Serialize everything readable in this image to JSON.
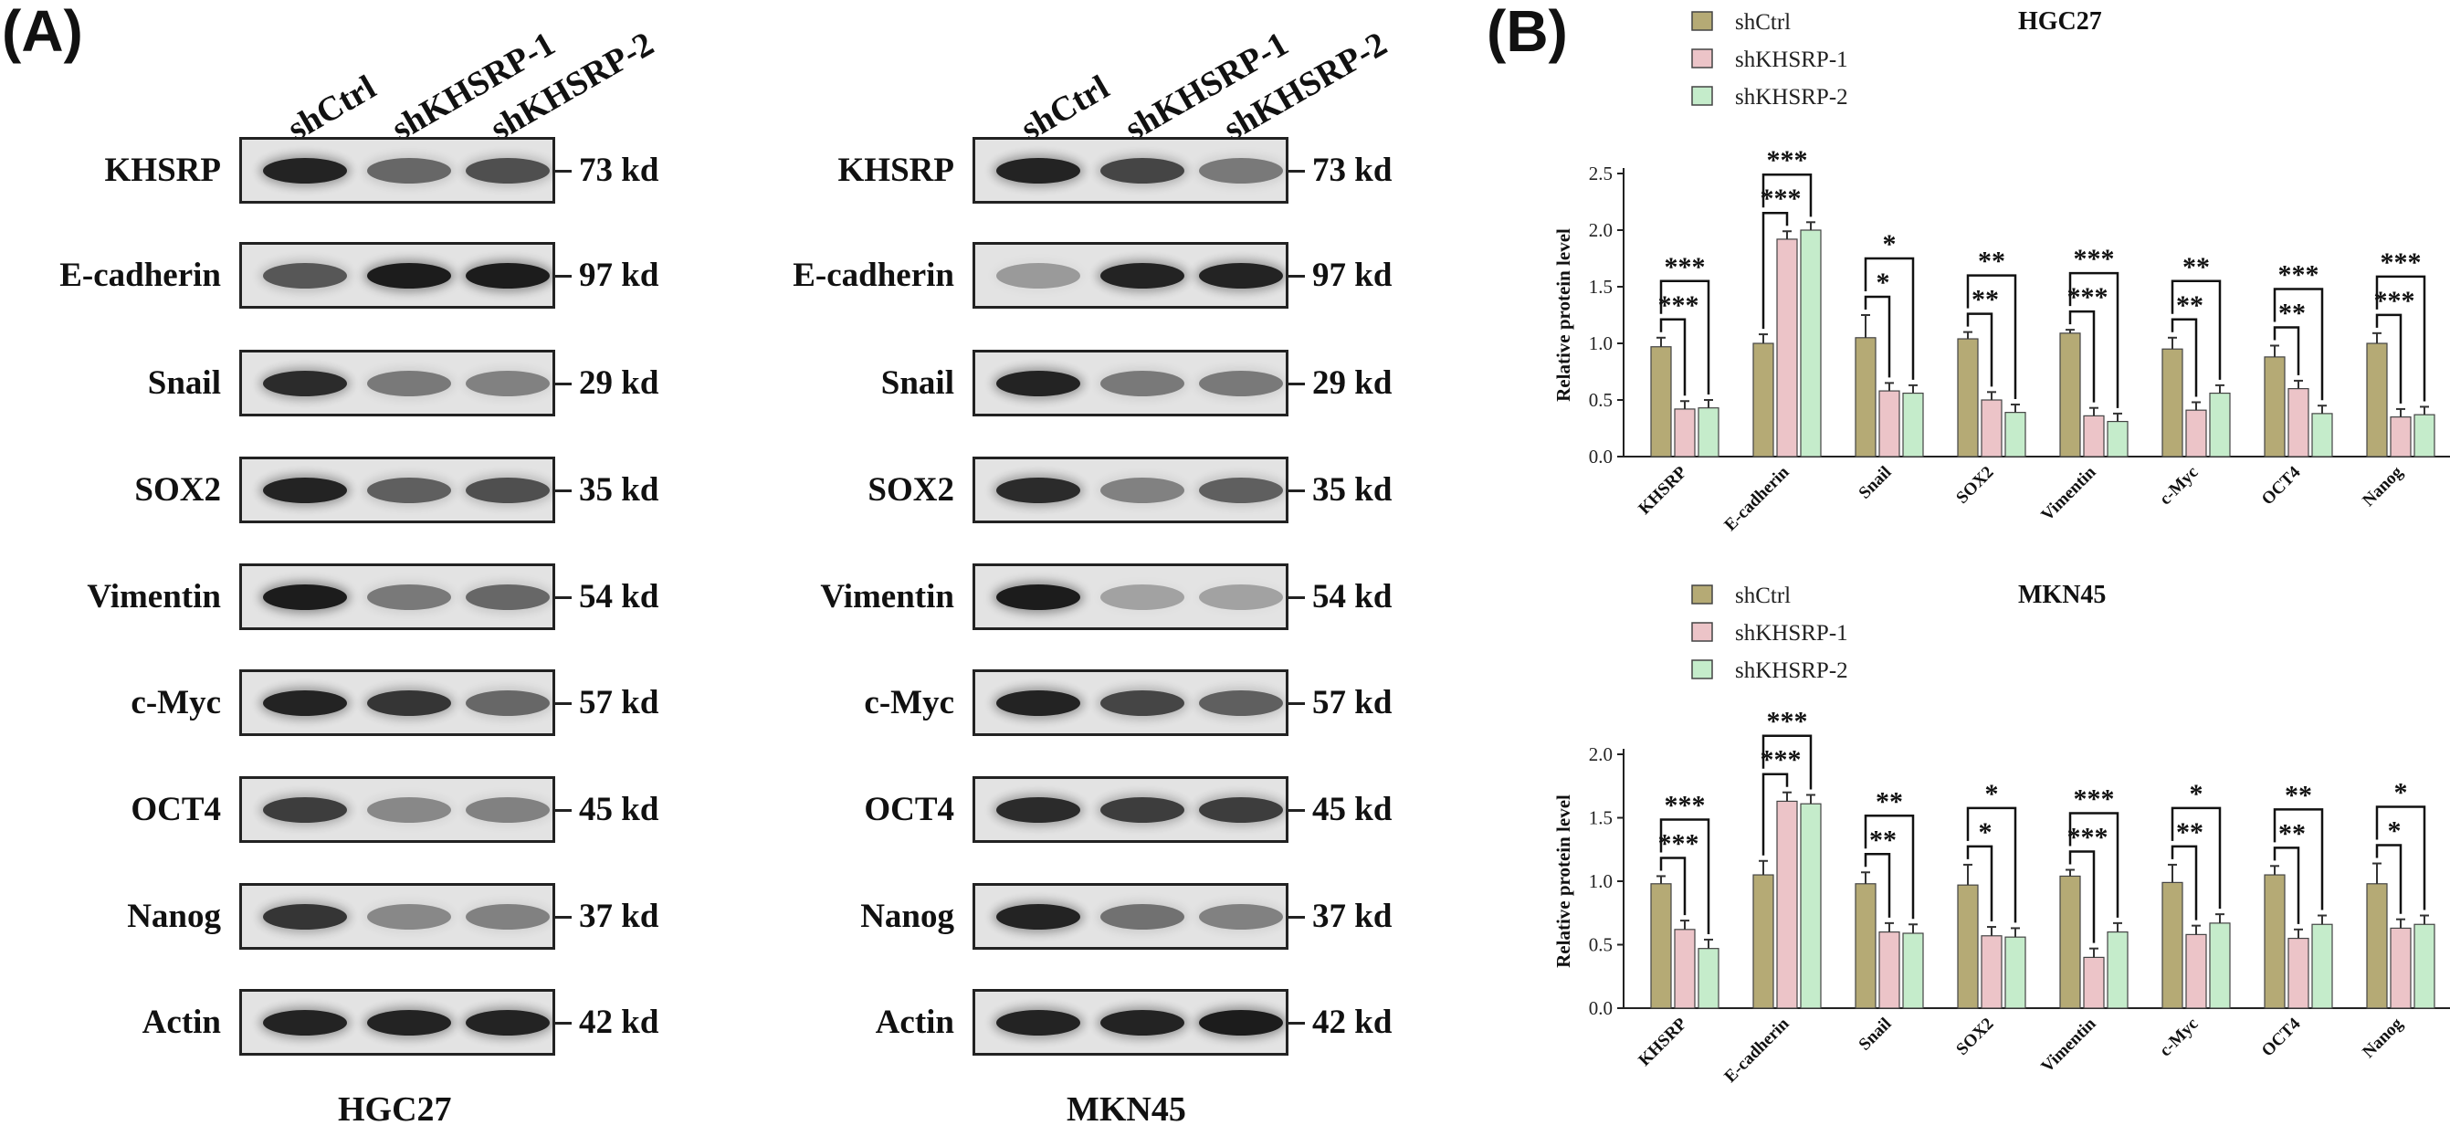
{
  "panel_labels": {
    "a": "(A)",
    "b": "(B)"
  },
  "lanes": [
    "shCtrl",
    "shKHSRP-1",
    "shKHSRP-2"
  ],
  "blots": [
    {
      "cell_line": "HGC27",
      "rows": [
        {
          "protein": "KHSRP",
          "kd": "73 kd",
          "intensity": [
            0.95,
            0.55,
            0.7
          ]
        },
        {
          "protein": "E-cadherin",
          "kd": "97 kd",
          "intensity": [
            0.65,
            1.0,
            1.0
          ]
        },
        {
          "protein": "Snail",
          "kd": "29 kd",
          "intensity": [
            0.9,
            0.45,
            0.4
          ]
        },
        {
          "protein": "SOX2",
          "kd": "35 kd",
          "intensity": [
            0.95,
            0.6,
            0.7
          ]
        },
        {
          "protein": "Vimentin",
          "kd": "54 kd",
          "intensity": [
            1.0,
            0.45,
            0.55
          ]
        },
        {
          "protein": "c-Myc",
          "kd": "57 kd",
          "intensity": [
            0.95,
            0.85,
            0.55
          ]
        },
        {
          "protein": "OCT4",
          "kd": "45 kd",
          "intensity": [
            0.8,
            0.35,
            0.4
          ]
        },
        {
          "protein": "Nanog",
          "kd": "37 kd",
          "intensity": [
            0.85,
            0.35,
            0.4
          ]
        },
        {
          "protein": "Actin",
          "kd": "42 kd",
          "intensity": [
            0.95,
            0.95,
            0.95
          ]
        }
      ]
    },
    {
      "cell_line": "MKN45",
      "rows": [
        {
          "protein": "KHSRP",
          "kd": "73 kd",
          "intensity": [
            0.95,
            0.75,
            0.45
          ]
        },
        {
          "protein": "E-cadherin",
          "kd": "97 kd",
          "intensity": [
            0.25,
            0.95,
            0.95
          ]
        },
        {
          "protein": "Snail",
          "kd": "29 kd",
          "intensity": [
            0.95,
            0.45,
            0.45
          ]
        },
        {
          "protein": "SOX2",
          "kd": "35 kd",
          "intensity": [
            0.9,
            0.4,
            0.6
          ]
        },
        {
          "protein": "Vimentin",
          "kd": "54 kd",
          "intensity": [
            1.0,
            0.2,
            0.2
          ]
        },
        {
          "protein": "c-Myc",
          "kd": "57 kd",
          "intensity": [
            0.95,
            0.75,
            0.6
          ]
        },
        {
          "protein": "OCT4",
          "kd": "45 kd",
          "intensity": [
            0.9,
            0.8,
            0.8
          ]
        },
        {
          "protein": "Nanog",
          "kd": "37 kd",
          "intensity": [
            0.95,
            0.5,
            0.4
          ]
        },
        {
          "protein": "Actin",
          "kd": "42 kd",
          "intensity": [
            0.95,
            0.95,
            1.0
          ]
        }
      ]
    }
  ],
  "chart_data": [
    {
      "type": "bar",
      "title": "HGC27",
      "ylabel": "Relative protein level",
      "ylim": [
        0,
        2.5
      ],
      "yticks": [
        "0.0",
        "0.5",
        "1.0",
        "1.5",
        "2.0",
        "2.5"
      ],
      "categories": [
        "KHSRP",
        "E-cadherin",
        "Snail",
        "SOX2",
        "Vimentin",
        "c-Myc",
        "OCT4",
        "Nanog"
      ],
      "legend_position": "top-left",
      "series": [
        {
          "name": "shCtrl",
          "color": "#b5aa75",
          "values": [
            0.97,
            1.0,
            1.05,
            1.04,
            1.09,
            0.95,
            0.88,
            1.0
          ],
          "errors": [
            0.08,
            0.08,
            0.2,
            0.06,
            0.03,
            0.1,
            0.1,
            0.09
          ]
        },
        {
          "name": "shKHSRP-1",
          "color": "#ecc4c8",
          "values": [
            0.42,
            1.92,
            0.58,
            0.5,
            0.36,
            0.41,
            0.6,
            0.35
          ]
        },
        {
          "name": "shKHSRP-2",
          "color": "#c5eccb",
          "values": [
            0.43,
            2.0,
            0.56,
            0.39,
            0.31,
            0.56,
            0.38,
            0.37
          ]
        }
      ],
      "significance": [
        {
          "low": "***",
          "high": "***"
        },
        {
          "low": "***",
          "high": "***"
        },
        {
          "low": "*",
          "high": "*"
        },
        {
          "low": "**",
          "high": "**"
        },
        {
          "low": "***",
          "high": "***"
        },
        {
          "low": "**",
          "high": "**"
        },
        {
          "low": "**",
          "high": "***"
        },
        {
          "low": "***",
          "high": "***"
        }
      ]
    },
    {
      "type": "bar",
      "title": "MKN45",
      "ylabel": "Relative protein level",
      "ylim": [
        0,
        2.0
      ],
      "yticks": [
        "0.0",
        "0.5",
        "1.0",
        "1.5",
        "2.0"
      ],
      "categories": [
        "KHSRP",
        "E-cadherin",
        "Snail",
        "SOX2",
        "Vimentin",
        "c-Myc",
        "OCT4",
        "Nanog"
      ],
      "legend_position": "top-left",
      "series": [
        {
          "name": "shCtrl",
          "color": "#b5aa75",
          "values": [
            0.98,
            1.05,
            0.98,
            0.97,
            1.04,
            0.99,
            1.05,
            0.98
          ],
          "errors": [
            0.06,
            0.11,
            0.09,
            0.16,
            0.05,
            0.14,
            0.07,
            0.16
          ]
        },
        {
          "name": "shKHSRP-1",
          "color": "#ecc4c8",
          "values": [
            0.62,
            1.63,
            0.6,
            0.57,
            0.4,
            0.58,
            0.55,
            0.63
          ]
        },
        {
          "name": "shKHSRP-2",
          "color": "#c5eccb",
          "values": [
            0.47,
            1.61,
            0.59,
            0.56,
            0.6,
            0.67,
            0.66,
            0.66
          ]
        }
      ],
      "significance": [
        {
          "low": "***",
          "high": "***"
        },
        {
          "low": "***",
          "high": "***"
        },
        {
          "low": "**",
          "high": "**"
        },
        {
          "low": "*",
          "high": "*"
        },
        {
          "low": "***",
          "high": "***"
        },
        {
          "low": "**",
          "high": "*"
        },
        {
          "low": "**",
          "high": "**"
        },
        {
          "low": "*",
          "high": "*"
        }
      ]
    }
  ]
}
